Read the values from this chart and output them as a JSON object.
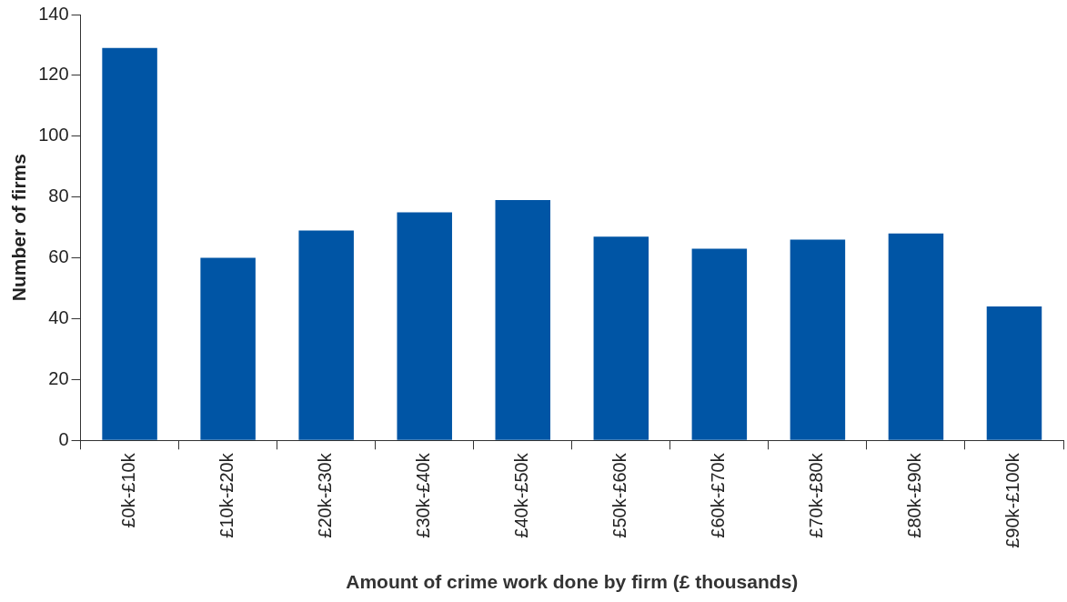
{
  "chart_data": {
    "type": "bar",
    "xlabel": "Amount of crime work done by firm (£ thousands)",
    "ylabel": "Number of firms",
    "categories": [
      "£0k-£10k",
      "£10k-£20k",
      "£20k-£30k",
      "£30k-£40k",
      "£40k-£50k",
      "£50k-£60k",
      "£60k-£70k",
      "£70k-£80k",
      "£80k-£90k",
      "£90k-£100k"
    ],
    "values": [
      129,
      60,
      69,
      75,
      79,
      67,
      63,
      66,
      68,
      44
    ],
    "color": "#0055a5",
    "ylim": [
      0,
      140
    ],
    "yticks": [
      0,
      20,
      40,
      60,
      80,
      100,
      120,
      140
    ],
    "grid": false,
    "legend": false
  }
}
